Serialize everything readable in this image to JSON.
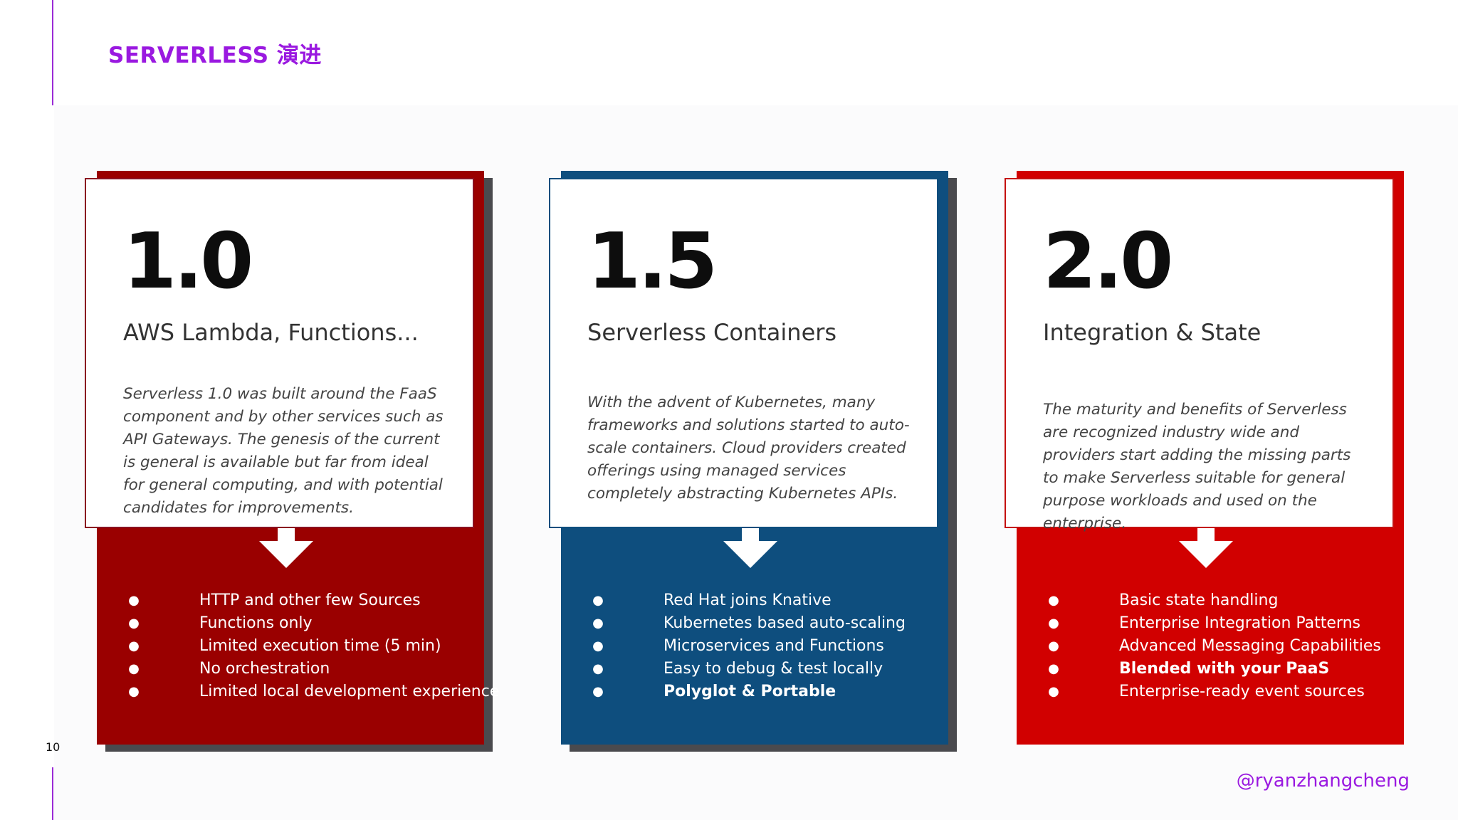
{
  "slide": {
    "title": "SERVERLESS 演进",
    "page_number": "10",
    "handle": "@ryanzhangcheng"
  },
  "colors": {
    "accent_purple": "#9a19e0",
    "card1_red": "#9a0000",
    "card2_blue": "#0e4e7e",
    "card3_red": "#d10000",
    "shadow_gray": "#4a4a4e"
  },
  "cards": [
    {
      "version": "1.0",
      "subtitle": "AWS Lambda, Functions...",
      "description": "Serverless 1.0 was built around the FaaS component and by other services such as API Gateways. The genesis of the current is general is available but far from ideal for general computing, and with potential candidates for improvements.",
      "features": [
        {
          "text": "HTTP and other few Sources",
          "bold": false
        },
        {
          "text": "Functions only",
          "bold": false
        },
        {
          "text": "Limited execution time (5 min)",
          "bold": false
        },
        {
          "text": "No orchestration",
          "bold": false
        },
        {
          "text": "Limited local development experience",
          "bold": false
        }
      ]
    },
    {
      "version": "1.5",
      "subtitle": "Serverless Containers",
      "description": "With the advent of Kubernetes, many frameworks and solutions started to auto-scale containers. Cloud providers created offerings using managed services completely abstracting Kubernetes APIs.",
      "features": [
        {
          "text": "Red Hat joins Knative",
          "bold": false
        },
        {
          "text": "Kubernetes based auto-scaling",
          "bold": false
        },
        {
          "text": "Microservices and Functions",
          "bold": false
        },
        {
          "text": "Easy to debug & test locally",
          "bold": false
        },
        {
          "text": "Polyglot & Portable",
          "bold": true
        }
      ]
    },
    {
      "version": "2.0",
      "subtitle": "Integration & State",
      "description": "The maturity and benefits of Serverless are recognized industry wide and providers start adding the missing parts to make Serverless suitable for general purpose workloads and used on the enterprise.",
      "features": [
        {
          "text": "Basic state handling",
          "bold": false
        },
        {
          "text": "Enterprise Integration Patterns",
          "bold": false
        },
        {
          "text": "Advanced Messaging Capabilities",
          "bold": false
        },
        {
          "text": "Blended with your PaaS",
          "bold": true
        },
        {
          "text": "Enterprise-ready event sources",
          "bold": false
        }
      ]
    }
  ],
  "bullet_glyph": "●",
  "icons": {
    "down_arrow": "down-arrow-icon"
  }
}
